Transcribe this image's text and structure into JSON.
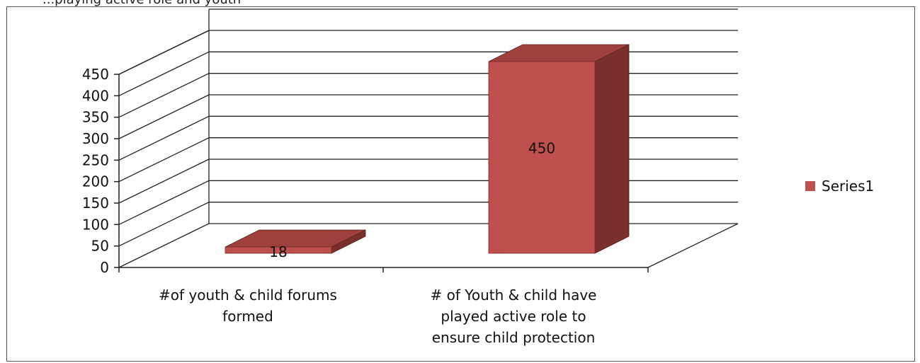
{
  "top_caption_fragment": "...playing active role and youth",
  "chart_data": {
    "type": "bar",
    "categories": [
      [
        "#of youth & child forums",
        "formed"
      ],
      [
        "# of Youth & child have",
        "played active role to",
        "ensure child protection"
      ]
    ],
    "series": [
      {
        "name": "Series1",
        "values": [
          18,
          450
        ]
      }
    ],
    "data_labels": [
      "18",
      "450"
    ],
    "title": "",
    "xlabel": "",
    "ylabel": "",
    "ylim": [
      0,
      450
    ],
    "yticks": [
      0,
      50,
      100,
      150,
      200,
      250,
      300,
      350,
      400,
      450
    ],
    "grid": true,
    "legend": "right",
    "style": "3d",
    "colors": {
      "bar_front": "#c0504d",
      "bar_top": "#a0403d",
      "bar_side": "#7a2f2d",
      "grid": "#222222"
    }
  }
}
